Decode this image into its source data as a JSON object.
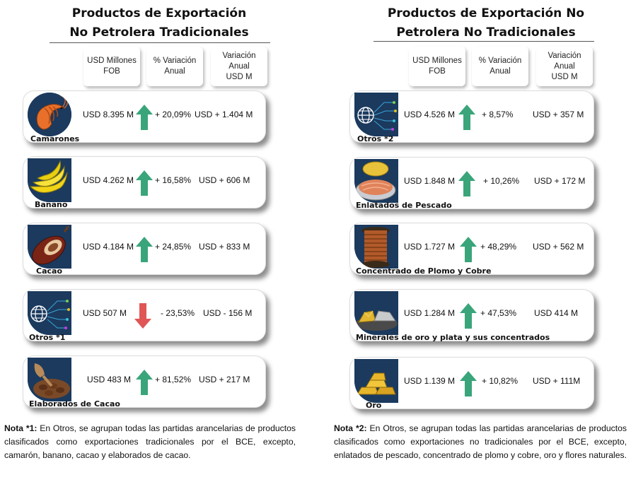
{
  "left": {
    "title_line1": "Productos de Exportación",
    "title_line2": "No Petrolera Tradicionales",
    "col1": "USD Millones\nFOB",
    "col2": "% Variación\nAnual",
    "col3": "Variación\nAnual\nUSD M",
    "rows": [
      {
        "label": "Camarones",
        "fob": "USD 8.395 M",
        "pct": "+ 20,09%",
        "var": "USD + 1.404 M",
        "icon": "shrimp-icon",
        "trend": "up"
      },
      {
        "label": "Banano",
        "fob": "USD 4.262 M",
        "pct": "+ 16,58%",
        "var": "USD + 606 M",
        "icon": "banana-icon",
        "trend": "up"
      },
      {
        "label": "Cacao",
        "fob": "USD 4.184 M",
        "pct": "+ 24,85%",
        "var": "USD + 833 M",
        "icon": "cacao-pod-icon",
        "trend": "up"
      },
      {
        "label": "Otros *1",
        "fob": "USD 507 M",
        "pct": "- 23,53%",
        "var": "USD - 156 M",
        "icon": "globe-network-icon",
        "trend": "down"
      },
      {
        "label": "Elaborados de Cacao",
        "fob": "USD 483 M",
        "pct": "+ 81,52%",
        "var": "USD + 217 M",
        "icon": "cocoa-beans-icon",
        "trend": "up"
      }
    ],
    "note_title": "Nota *1:",
    "note_text": " En Otros, se agrupan todas las partidas arancelarias de productos clasificados como exportaciones tradicionales por el BCE, excepto, camarón, banano, cacao y elaborados de cacao."
  },
  "right": {
    "title_line1": "Productos de Exportación No",
    "title_line2": "Petrolera No Tradicionales",
    "col1": "USD Millones\nFOB",
    "col2": "% Variación\nAnual",
    "col3": "Variación\nAnual\nUSD M",
    "rows": [
      {
        "label": "Otros *2",
        "fob": "USD 4.526 M",
        "pct": "+ 8,57%",
        "var": "USD + 357 M",
        "icon": "globe-network-icon",
        "trend": "up"
      },
      {
        "label": "Enlatados de Pescado",
        "fob": "USD 1.848 M",
        "pct": "+ 10,26%",
        "var": "USD + 172 M",
        "icon": "canned-fish-icon",
        "trend": "up"
      },
      {
        "label": "Concentrado de Plomo y Cobre",
        "fob": "USD 1.727 M",
        "pct": "+ 48,29%",
        "var": "USD + 562 M",
        "icon": "copper-spool-icon",
        "trend": "up"
      },
      {
        "label": "Minerales de oro y plata y sus concentrados",
        "fob": "USD 1.284 M",
        "pct": "+ 47,53%",
        "var": "USD 414 M",
        "icon": "gold-silver-ore-icon",
        "trend": "up"
      },
      {
        "label": "Oro",
        "fob": "USD 1.139 M",
        "pct": "+ 10,82%",
        "var": "USD + 111M",
        "icon": "gold-bars-icon",
        "trend": "up"
      }
    ],
    "note_title": "Nota *2:",
    "note_text": " En Otros, se agrupan todas las partidas arancelarias de productos clasificados como exportaciones no tradicionales por el BCE, excepto, enlatados de pescado, concentrado de plomo y cobre, oro y flores naturales."
  },
  "colors": {
    "up": "#3aa57a",
    "down": "#e05656",
    "icon_bg": "#1b3a5e"
  }
}
